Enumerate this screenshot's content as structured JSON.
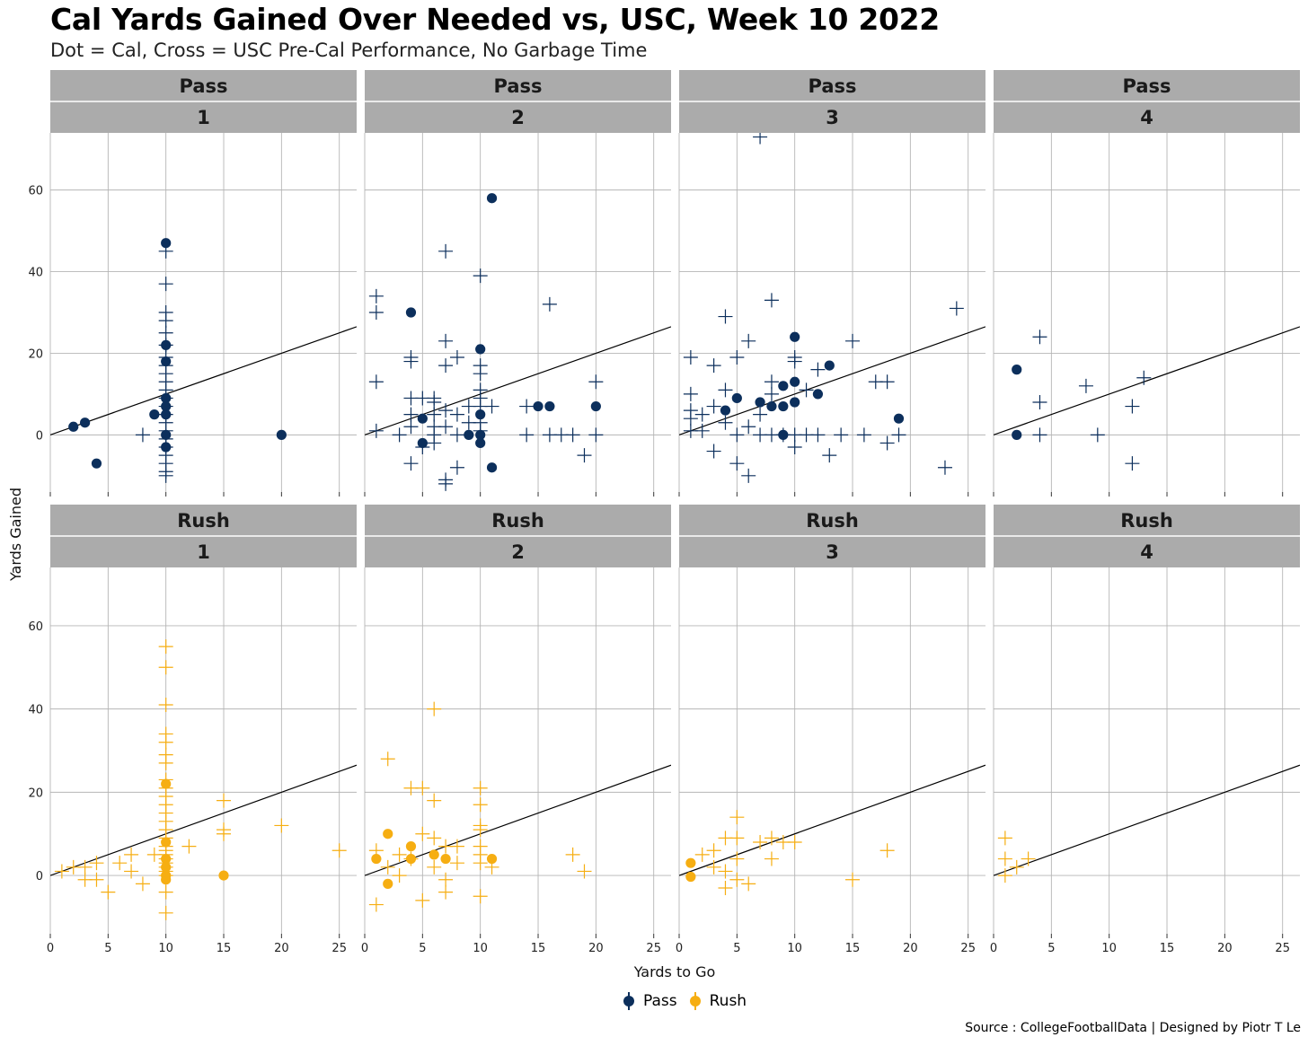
{
  "title": "Cal Yards Gained Over Needed vs, USC, Week 10 2022",
  "subtitle": "Dot = Cal, Cross = USC Pre-Cal Performance, No Garbage Time",
  "caption": "Source : CollegeFootballData | Designed by Piotr T Le",
  "legend": [
    {
      "label": "Pass",
      "color": "#0c2f5c"
    },
    {
      "label": "Rush",
      "color": "#f6ae12"
    }
  ],
  "chart_data": {
    "type": "scatter",
    "xlabel": "Yards to Go",
    "ylabel": "Yards Gained",
    "xlim": [
      0,
      26.5
    ],
    "ylim": [
      -14,
      74
    ],
    "x_ticks": [
      0,
      5,
      10,
      15,
      20,
      25
    ],
    "y_ticks": [
      0,
      20,
      40,
      60
    ],
    "reference_line": "y = x",
    "facet_rows": [
      "Pass",
      "Rush"
    ],
    "facet_cols": [
      "1",
      "2",
      "3",
      "4"
    ],
    "panels": [
      {
        "play": "Pass",
        "down": "1",
        "color": "#0c2f5c",
        "cal": [
          [
            2,
            2
          ],
          [
            3,
            3
          ],
          [
            4,
            -7
          ],
          [
            9,
            5
          ],
          [
            10,
            47
          ],
          [
            10,
            22
          ],
          [
            10,
            18
          ],
          [
            10,
            9
          ],
          [
            10,
            7
          ],
          [
            10,
            5
          ],
          [
            10,
            0
          ],
          [
            10,
            -3
          ],
          [
            20,
            0
          ]
        ],
        "usc": [
          [
            8,
            0
          ],
          [
            10,
            45
          ],
          [
            10,
            37
          ],
          [
            10,
            30
          ],
          [
            10,
            28
          ],
          [
            10,
            25
          ],
          [
            10,
            22
          ],
          [
            10,
            19
          ],
          [
            10,
            17
          ],
          [
            10,
            15
          ],
          [
            10,
            13
          ],
          [
            10,
            11
          ],
          [
            10,
            9
          ],
          [
            10,
            7
          ],
          [
            10,
            5
          ],
          [
            10,
            3
          ],
          [
            10,
            1
          ],
          [
            10,
            -1
          ],
          [
            10,
            -3
          ],
          [
            10,
            -5
          ],
          [
            10,
            -7
          ],
          [
            10,
            -9
          ],
          [
            10,
            -10
          ]
        ]
      },
      {
        "play": "Pass",
        "down": "2",
        "color": "#0c2f5c",
        "cal": [
          [
            4,
            30
          ],
          [
            5,
            4
          ],
          [
            5,
            -2
          ],
          [
            9,
            0
          ],
          [
            10,
            21
          ],
          [
            10,
            5
          ],
          [
            10,
            0
          ],
          [
            10,
            -2
          ],
          [
            11,
            58
          ],
          [
            11,
            -8
          ],
          [
            15,
            7
          ],
          [
            16,
            7
          ],
          [
            20,
            7
          ]
        ],
        "usc": [
          [
            1,
            34
          ],
          [
            1,
            30
          ],
          [
            1,
            13
          ],
          [
            1,
            1
          ],
          [
            3,
            0
          ],
          [
            4,
            19
          ],
          [
            4,
            18
          ],
          [
            4,
            9
          ],
          [
            4,
            5
          ],
          [
            4,
            2
          ],
          [
            4,
            -7
          ],
          [
            5,
            9
          ],
          [
            5,
            -3
          ],
          [
            6,
            9
          ],
          [
            6,
            8
          ],
          [
            6,
            5
          ],
          [
            6,
            2
          ],
          [
            6,
            0
          ],
          [
            6,
            -2
          ],
          [
            7,
            45
          ],
          [
            7,
            23
          ],
          [
            7,
            17
          ],
          [
            7,
            6
          ],
          [
            7,
            2
          ],
          [
            7,
            -11
          ],
          [
            7,
            -12
          ],
          [
            8,
            19
          ],
          [
            8,
            5
          ],
          [
            8,
            0
          ],
          [
            8,
            -8
          ],
          [
            9,
            7
          ],
          [
            9,
            3
          ],
          [
            10,
            39
          ],
          [
            10,
            17
          ],
          [
            10,
            15
          ],
          [
            10,
            11
          ],
          [
            10,
            9
          ],
          [
            10,
            7
          ],
          [
            10,
            3
          ],
          [
            10,
            1
          ],
          [
            11,
            7
          ],
          [
            14,
            7
          ],
          [
            14,
            0
          ],
          [
            16,
            32
          ],
          [
            16,
            0
          ],
          [
            17,
            0
          ],
          [
            18,
            0
          ],
          [
            19,
            -5
          ],
          [
            20,
            13
          ],
          [
            20,
            0
          ]
        ]
      },
      {
        "play": "Pass",
        "down": "3",
        "color": "#0c2f5c",
        "cal": [
          [
            4,
            6
          ],
          [
            5,
            9
          ],
          [
            7,
            8
          ],
          [
            8,
            7
          ],
          [
            9,
            12
          ],
          [
            9,
            7
          ],
          [
            9,
            0
          ],
          [
            10,
            24
          ],
          [
            10,
            13
          ],
          [
            10,
            8
          ],
          [
            12,
            10
          ],
          [
            13,
            17
          ],
          [
            19,
            4
          ]
        ],
        "usc": [
          [
            1,
            19
          ],
          [
            1,
            10
          ],
          [
            1,
            6
          ],
          [
            1,
            4
          ],
          [
            1,
            1
          ],
          [
            2,
            5
          ],
          [
            2,
            1
          ],
          [
            3,
            17
          ],
          [
            3,
            7
          ],
          [
            3,
            -4
          ],
          [
            4,
            29
          ],
          [
            4,
            11
          ],
          [
            4,
            3
          ],
          [
            5,
            19
          ],
          [
            5,
            -7
          ],
          [
            5,
            0
          ],
          [
            6,
            23
          ],
          [
            6,
            2
          ],
          [
            6,
            -10
          ],
          [
            7,
            73
          ],
          [
            7,
            5
          ],
          [
            7,
            0
          ],
          [
            8,
            33
          ],
          [
            8,
            13
          ],
          [
            8,
            10
          ],
          [
            8,
            0
          ],
          [
            9,
            0
          ],
          [
            10,
            19
          ],
          [
            10,
            18
          ],
          [
            10,
            0
          ],
          [
            10,
            -3
          ],
          [
            11,
            11
          ],
          [
            11,
            0
          ],
          [
            12,
            16
          ],
          [
            12,
            0
          ],
          [
            13,
            -5
          ],
          [
            14,
            0
          ],
          [
            15,
            23
          ],
          [
            16,
            0
          ],
          [
            17,
            13
          ],
          [
            18,
            13
          ],
          [
            18,
            -2
          ],
          [
            19,
            0
          ],
          [
            23,
            -8
          ],
          [
            24,
            31
          ]
        ]
      },
      {
        "play": "Pass",
        "down": "4",
        "color": "#0c2f5c",
        "cal": [
          [
            2,
            16
          ],
          [
            2,
            0
          ]
        ],
        "usc": [
          [
            4,
            24
          ],
          [
            4,
            8
          ],
          [
            4,
            0
          ],
          [
            8,
            12
          ],
          [
            9,
            0
          ],
          [
            12,
            7
          ],
          [
            12,
            -7
          ],
          [
            13,
            14
          ]
        ]
      },
      {
        "play": "Rush",
        "down": "1",
        "color": "#f6ae12",
        "cal": [
          [
            10,
            22
          ],
          [
            10,
            8
          ],
          [
            10,
            4
          ],
          [
            10,
            2
          ],
          [
            10,
            0
          ],
          [
            10,
            -1
          ],
          [
            15,
            0
          ]
        ],
        "usc": [
          [
            1,
            1
          ],
          [
            2,
            2
          ],
          [
            3,
            -1
          ],
          [
            3,
            2
          ],
          [
            4,
            -1
          ],
          [
            4,
            3
          ],
          [
            5,
            -4
          ],
          [
            6,
            3
          ],
          [
            7,
            1
          ],
          [
            7,
            5
          ],
          [
            8,
            -2
          ],
          [
            9,
            5
          ],
          [
            10,
            55
          ],
          [
            10,
            50
          ],
          [
            10,
            41
          ],
          [
            10,
            34
          ],
          [
            10,
            32
          ],
          [
            10,
            29
          ],
          [
            10,
            27
          ],
          [
            10,
            23
          ],
          [
            10,
            21
          ],
          [
            10,
            19
          ],
          [
            10,
            17
          ],
          [
            10,
            15
          ],
          [
            10,
            13
          ],
          [
            10,
            11
          ],
          [
            10,
            9
          ],
          [
            10,
            7
          ],
          [
            10,
            6
          ],
          [
            10,
            5
          ],
          [
            10,
            4
          ],
          [
            10,
            3
          ],
          [
            10,
            2
          ],
          [
            10,
            1
          ],
          [
            10,
            0
          ],
          [
            10,
            -4
          ],
          [
            10,
            -9
          ],
          [
            12,
            7
          ],
          [
            15,
            18
          ],
          [
            15,
            11
          ],
          [
            15,
            10
          ],
          [
            20,
            12
          ],
          [
            25,
            6
          ]
        ]
      },
      {
        "play": "Rush",
        "down": "2",
        "color": "#f6ae12",
        "cal": [
          [
            1,
            4
          ],
          [
            2,
            10
          ],
          [
            2,
            -2
          ],
          [
            4,
            7
          ],
          [
            4,
            4
          ],
          [
            6,
            5
          ],
          [
            7,
            4
          ],
          [
            11,
            4
          ]
        ],
        "usc": [
          [
            1,
            6
          ],
          [
            1,
            -7
          ],
          [
            2,
            28
          ],
          [
            2,
            2
          ],
          [
            3,
            5
          ],
          [
            3,
            0
          ],
          [
            4,
            21
          ],
          [
            4,
            4
          ],
          [
            5,
            21
          ],
          [
            5,
            10
          ],
          [
            5,
            -6
          ],
          [
            6,
            40
          ],
          [
            6,
            18
          ],
          [
            6,
            9
          ],
          [
            6,
            2
          ],
          [
            7,
            7
          ],
          [
            7,
            -1
          ],
          [
            7,
            -4
          ],
          [
            8,
            7
          ],
          [
            8,
            3
          ],
          [
            10,
            21
          ],
          [
            10,
            17
          ],
          [
            10,
            12
          ],
          [
            10,
            11
          ],
          [
            10,
            7
          ],
          [
            10,
            5
          ],
          [
            10,
            3
          ],
          [
            10,
            -5
          ],
          [
            11,
            2
          ],
          [
            18,
            5
          ],
          [
            19,
            1
          ]
        ]
      },
      {
        "play": "Rush",
        "down": "3",
        "color": "#f6ae12",
        "cal": [
          [
            1,
            3
          ],
          [
            1,
            -0.3
          ]
        ],
        "usc": [
          [
            2,
            5
          ],
          [
            3,
            6
          ],
          [
            3,
            2
          ],
          [
            4,
            9
          ],
          [
            4,
            1
          ],
          [
            4,
            -3
          ],
          [
            5,
            14
          ],
          [
            5,
            9
          ],
          [
            5,
            4
          ],
          [
            5,
            -1
          ],
          [
            6,
            -2
          ],
          [
            7,
            8
          ],
          [
            8,
            9
          ],
          [
            8,
            4
          ],
          [
            9,
            8
          ],
          [
            10,
            8
          ],
          [
            15,
            -1
          ],
          [
            18,
            6
          ]
        ]
      },
      {
        "play": "Rush",
        "down": "4",
        "color": "#f6ae12",
        "cal": [],
        "usc": [
          [
            1,
            9
          ],
          [
            1,
            4
          ],
          [
            1,
            0
          ],
          [
            2,
            2
          ],
          [
            3,
            4
          ]
        ]
      }
    ]
  }
}
